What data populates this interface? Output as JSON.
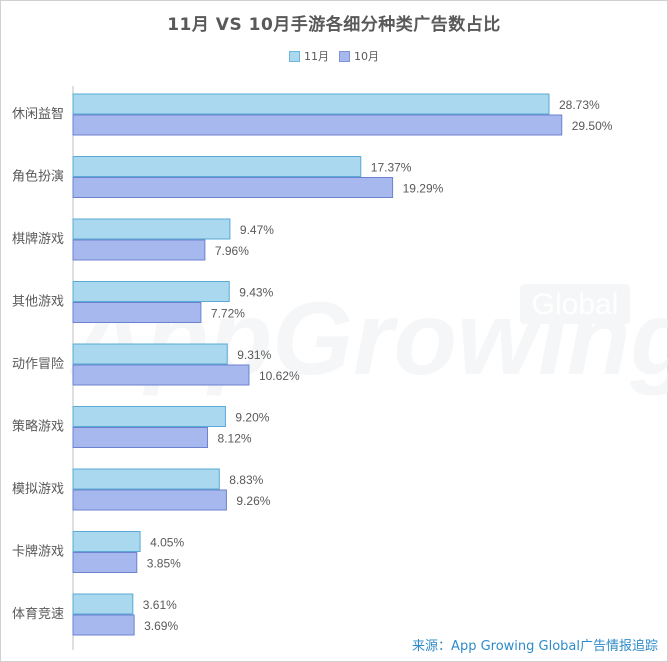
{
  "title": "11月 VS 10月手游各细分种类广告数占比",
  "legend": [
    {
      "label": "11月",
      "color": "#a9d8ef"
    },
    {
      "label": "10月",
      "color": "#a7b8ee"
    }
  ],
  "watermark": {
    "main": "AppGrowing",
    "badge": "Global"
  },
  "source": "来源：App Growing Global广告情报追踪",
  "chart_data": {
    "type": "bar",
    "orientation": "horizontal",
    "title": "11月 VS 10月手游各细分种类广告数占比",
    "categories": [
      "休闲益智",
      "角色扮演",
      "棋牌游戏",
      "其他游戏",
      "动作冒险",
      "策略游戏",
      "模拟游戏",
      "卡牌游戏",
      "体育竞速"
    ],
    "series": [
      {
        "name": "11月",
        "values": [
          28.73,
          17.37,
          9.47,
          9.43,
          9.31,
          9.2,
          8.83,
          4.05,
          3.61
        ],
        "color": "#a9d8ef"
      },
      {
        "name": "10月",
        "values": [
          29.5,
          19.29,
          7.96,
          7.72,
          10.62,
          8.12,
          9.26,
          3.85,
          3.69
        ],
        "color": "#a7b8ee"
      }
    ],
    "data_labels": [
      [
        "28.73%",
        "17.37%",
        "9.47%",
        "9.43%",
        "9.31%",
        "9.20%",
        "8.83%",
        "4.05%",
        "3.61%"
      ],
      [
        "29.50%",
        "19.29%",
        "7.96%",
        "7.72%",
        "10.62%",
        "8.12%",
        "9.26%",
        "3.85%",
        "3.69%"
      ]
    ],
    "unit": "%",
    "xlim": [
      0,
      30
    ],
    "grid": false,
    "legend_position": "top"
  }
}
